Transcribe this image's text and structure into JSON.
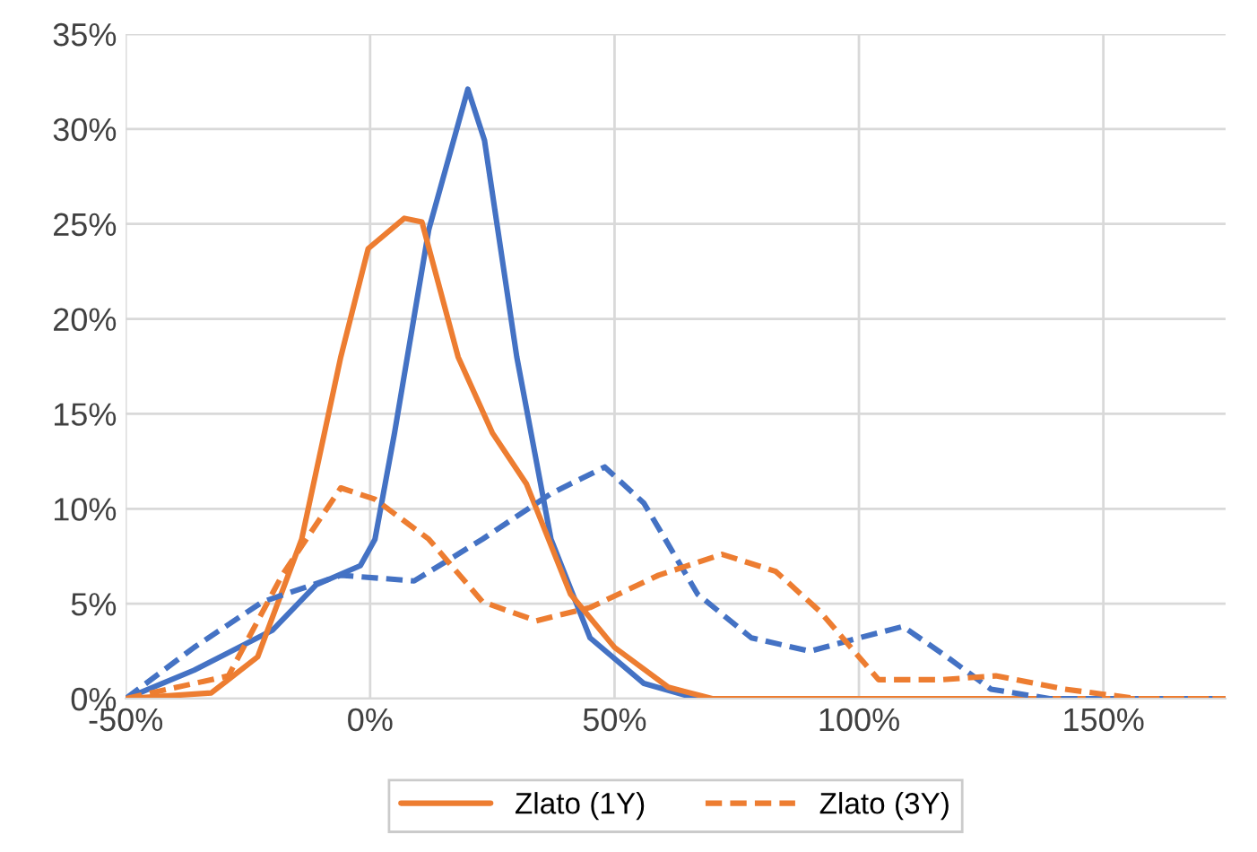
{
  "chart_data": {
    "type": "line",
    "xlim": [
      -50,
      175
    ],
    "xticks": [
      {
        "value": -50,
        "label": "-50%"
      },
      {
        "value": 0,
        "label": "0%"
      },
      {
        "value": 50,
        "label": "50%"
      },
      {
        "value": 100,
        "label": "100%"
      },
      {
        "value": 150,
        "label": "150%"
      }
    ],
    "ylim": [
      0,
      35
    ],
    "yticks": [
      {
        "value": 0,
        "label": "0%"
      },
      {
        "value": 5,
        "label": "5%"
      },
      {
        "value": 10,
        "label": "10%"
      },
      {
        "value": 15,
        "label": "15%"
      },
      {
        "value": 20,
        "label": "20%"
      },
      {
        "value": 25,
        "label": "25%"
      },
      {
        "value": 30,
        "label": "30%"
      },
      {
        "value": 35,
        "label": "35%"
      }
    ],
    "grid": true,
    "legend": "bottom",
    "marker": "none",
    "series": [
      {
        "color": "#4472c4",
        "line_style": "solid",
        "x": [
          -50,
          -36,
          -20,
          -11,
          -2,
          1,
          5,
          12,
          20,
          23.4,
          30,
          37,
          45,
          56,
          67,
          175
        ],
        "values": [
          0,
          1.5,
          3.6,
          6.0,
          7.0,
          8.4,
          14,
          24.7,
          32.1,
          29.4,
          18,
          8.4,
          3.2,
          0.8,
          0,
          0
        ]
      },
      {
        "name": "Zlato (1Y)",
        "color": "#ed7d31",
        "line_style": "solid",
        "x": [
          -50,
          -32.5,
          -23,
          -14,
          -6,
          -0.4,
          7,
          10.6,
          18,
          25,
          32,
          41,
          50,
          61,
          70,
          175
        ],
        "values": [
          0,
          0.3,
          2.2,
          8.4,
          18,
          23.7,
          25.3,
          25.1,
          18,
          14,
          11.3,
          5.5,
          2.7,
          0.6,
          0,
          0
        ]
      },
      {
        "color": "#4472c4",
        "line_style": "dashed",
        "x": [
          -50,
          -36,
          -22,
          -6,
          9,
          23,
          37,
          48,
          56,
          67,
          78,
          90,
          100,
          109,
          118,
          127,
          139,
          175
        ],
        "values": [
          0,
          2.7,
          5.1,
          6.5,
          6.2,
          8.4,
          10.8,
          12.2,
          10.3,
          5.5,
          3.2,
          2.5,
          3.2,
          3.8,
          2.2,
          0.5,
          0,
          0
        ]
      },
      {
        "name": "Zlato (3Y)",
        "color": "#ed7d31",
        "line_style": "dashed",
        "x": [
          -50,
          -29,
          -18,
          -6,
          1,
          12,
          23,
          34,
          45,
          59,
          72,
          83,
          92,
          104,
          117,
          128,
          142,
          157,
          175
        ],
        "values": [
          0,
          1.2,
          6.5,
          11.1,
          10.5,
          8.4,
          5.1,
          4.1,
          4.8,
          6.5,
          7.6,
          6.7,
          4.6,
          1.0,
          1.0,
          1.2,
          0.5,
          0,
          0
        ]
      }
    ]
  }
}
